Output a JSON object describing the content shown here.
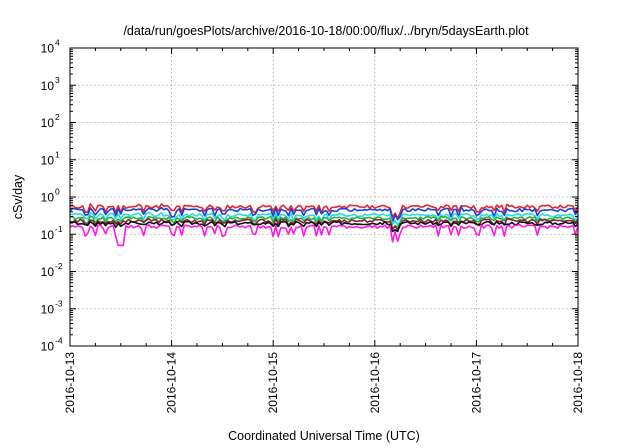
{
  "chart_data": {
    "type": "line",
    "title": "/data/run/goesPlots/archive/2016-10-18/00:00/flux/../bryn/5daysEarth.plot",
    "xlabel": "Coordinated Universal Time (UTC)",
    "ylabel": "cSv/day",
    "y_scale": "log",
    "ylim": [
      0.0001,
      10000
    ],
    "y_ticks": [
      {
        "base": "10",
        "exp": "4",
        "value": 10000
      },
      {
        "base": "10",
        "exp": "3",
        "value": 1000
      },
      {
        "base": "10",
        "exp": "2",
        "value": 100
      },
      {
        "base": "10",
        "exp": "1",
        "value": 10
      },
      {
        "base": "10",
        "exp": "0",
        "value": 1
      },
      {
        "base": "10",
        "exp": "-1",
        "value": 0.1
      },
      {
        "base": "10",
        "exp": "-2",
        "value": 0.01
      },
      {
        "base": "10",
        "exp": "-3",
        "value": 0.001
      },
      {
        "base": "10",
        "exp": "-4",
        "value": 0.0001
      }
    ],
    "x_ticks": [
      "2016-10-13",
      "2016-10-14",
      "2016-10-15",
      "2016-10-16",
      "2016-10-17",
      "2016-10-18"
    ],
    "xlim": [
      "2016-10-13",
      "2016-10-18"
    ],
    "grid": true,
    "series": [
      {
        "color": "#e8232a",
        "base": 0.55,
        "dip": 0.75,
        "spike": 1.12,
        "seed": 11
      },
      {
        "color": "#1f3fd9",
        "base": 0.45,
        "dip": 0.72,
        "spike": 1.15,
        "seed": 23
      },
      {
        "color": "#2bd9e6",
        "base": 0.33,
        "dip": 0.75,
        "spike": 1.08,
        "seed": 37
      },
      {
        "color": "#1fb83a",
        "base": 0.27,
        "dip": 0.8,
        "spike": 1.06,
        "seed": 41
      },
      {
        "color": "#8a1f3a",
        "base": 0.23,
        "dip": 0.82,
        "spike": 1.04,
        "seed": 53
      },
      {
        "color": "#111111",
        "base": 0.2,
        "dip": 0.85,
        "spike": 1.03,
        "seed": 67
      },
      {
        "color": "#ff19e6",
        "base": 0.16,
        "dip": 0.6,
        "spike": 1.05,
        "seed": 79
      }
    ]
  }
}
